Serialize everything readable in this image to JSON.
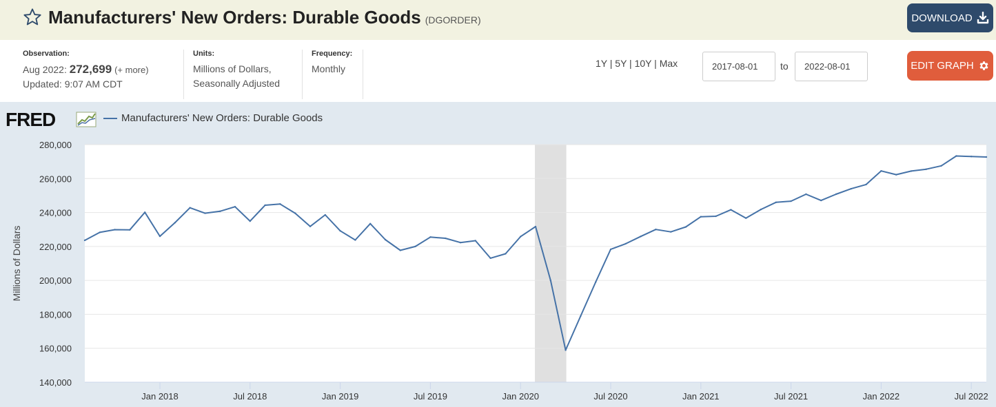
{
  "header": {
    "title": "Manufacturers' New Orders: Durable Goods",
    "series_id": "(DGORDER)",
    "download_label": "DOWNLOAD"
  },
  "info": {
    "observation_label": "Observation:",
    "observation_date": "Aug 2022:",
    "observation_value": "272,699",
    "observation_more": "(+ more)",
    "updated": "Updated: 9:07 AM CDT",
    "units_label": "Units:",
    "units_line1": "Millions of Dollars,",
    "units_line2": "Seasonally Adjusted",
    "frequency_label": "Frequency:",
    "frequency_value": "Monthly"
  },
  "controls": {
    "range_1y": "1Y",
    "range_5y": "5Y",
    "range_10y": "10Y",
    "range_max": "Max",
    "separator": " | ",
    "date_from": "2017-08-01",
    "to_label": "to",
    "date_to": "2022-08-01",
    "edit_graph_label": "EDIT GRAPH"
  },
  "colors": {
    "line": "#4572a7",
    "recession": "#e0e0e0",
    "download_bg": "#2e4a6b",
    "edit_bg": "#e05d3c"
  },
  "logo": {
    "text": "FRED"
  },
  "chart_data": {
    "type": "line",
    "legend": [
      "Manufacturers' New Orders: Durable Goods"
    ],
    "ylabel": "Millions of Dollars",
    "ylim": [
      140000,
      280000
    ],
    "yticks": [
      140000,
      160000,
      180000,
      200000,
      220000,
      240000,
      260000,
      280000
    ],
    "ytick_labels": [
      "140,000",
      "160,000",
      "180,000",
      "200,000",
      "220,000",
      "240,000",
      "260,000",
      "280,000"
    ],
    "xlim": [
      "2017-08",
      "2022-08"
    ],
    "xtick_labels": [
      "Jan 2018",
      "Jul 2018",
      "Jan 2019",
      "Jul 2019",
      "Jan 2020",
      "Jul 2020",
      "Jan 2021",
      "Jul 2021",
      "Jan 2022",
      "Jul 2022"
    ],
    "xtick_dates": [
      "2018-01",
      "2018-07",
      "2019-01",
      "2019-07",
      "2020-01",
      "2020-07",
      "2021-01",
      "2021-07",
      "2022-01",
      "2022-07"
    ],
    "recession": {
      "start": "2020-02",
      "end": "2020-04"
    },
    "grid": true,
    "series": [
      {
        "name": "Manufacturers' New Orders: Durable Goods",
        "x": [
          "2017-08",
          "2017-09",
          "2017-10",
          "2017-11",
          "2017-12",
          "2018-01",
          "2018-02",
          "2018-03",
          "2018-04",
          "2018-05",
          "2018-06",
          "2018-07",
          "2018-08",
          "2018-09",
          "2018-10",
          "2018-11",
          "2018-12",
          "2019-01",
          "2019-02",
          "2019-03",
          "2019-04",
          "2019-05",
          "2019-06",
          "2019-07",
          "2019-08",
          "2019-09",
          "2019-10",
          "2019-11",
          "2019-12",
          "2020-01",
          "2020-02",
          "2020-03",
          "2020-04",
          "2020-05",
          "2020-06",
          "2020-07",
          "2020-08",
          "2020-09",
          "2020-10",
          "2020-11",
          "2020-12",
          "2021-01",
          "2021-02",
          "2021-03",
          "2021-04",
          "2021-05",
          "2021-06",
          "2021-07",
          "2021-08",
          "2021-09",
          "2021-10",
          "2021-11",
          "2021-12",
          "2022-01",
          "2022-02",
          "2022-03",
          "2022-04",
          "2022-05",
          "2022-06",
          "2022-07",
          "2022-08"
        ],
        "values": [
          223600,
          228300,
          229900,
          229800,
          240100,
          226000,
          234000,
          242800,
          239600,
          240700,
          243400,
          234900,
          244300,
          245000,
          239600,
          231800,
          238600,
          229200,
          223800,
          233400,
          224000,
          217700,
          220000,
          225500,
          224800,
          222300,
          223400,
          213100,
          215700,
          225800,
          231700,
          200000,
          158900,
          179000,
          199000,
          218300,
          221600,
          225900,
          230000,
          228600,
          231500,
          237500,
          237800,
          241600,
          236700,
          241800,
          246000,
          246700,
          250800,
          247100,
          250800,
          254000,
          256500,
          264500,
          262300,
          264400,
          265500,
          267500,
          273300,
          273000,
          272699
        ]
      }
    ]
  }
}
